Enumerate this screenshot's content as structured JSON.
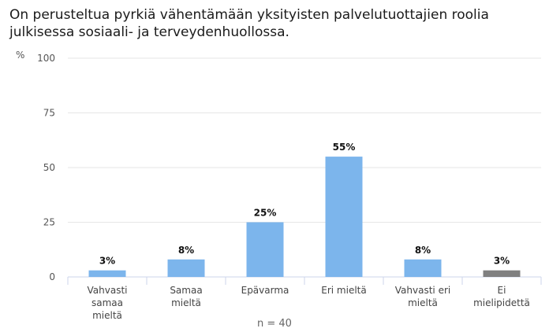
{
  "chart_data": {
    "type": "bar",
    "title": "On perusteltua pyrkiä vähentämään yksityisten palvelutuottajien roolia julkisessa sosiaali- ja terveydenhuollossa.",
    "ylabel": "%",
    "ylim": [
      0,
      100
    ],
    "yticks": [
      0,
      25,
      50,
      75,
      100
    ],
    "categories": [
      [
        "Vahvasti",
        "samaa",
        "mieltä"
      ],
      [
        "Samaa",
        "mieltä"
      ],
      [
        "Epävarma"
      ],
      [
        "Eri mieltä"
      ],
      [
        "Vahvasti eri",
        "mieltä"
      ],
      [
        "Ei",
        "mielipidettä"
      ]
    ],
    "values": [
      3,
      8,
      25,
      55,
      8,
      3
    ],
    "value_labels": [
      "3%",
      "8%",
      "25%",
      "55%",
      "8%",
      "3%"
    ],
    "colors": [
      "#7cb5ec",
      "#7cb5ec",
      "#7cb5ec",
      "#7cb5ec",
      "#7cb5ec",
      "#808080"
    ],
    "grid": true,
    "note": "n = 40"
  }
}
